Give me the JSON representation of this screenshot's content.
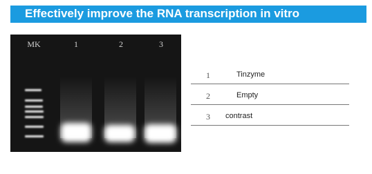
{
  "header": {
    "title": "Effectively improve the RNA transcription in vitro"
  },
  "gel": {
    "lanes": [
      "MK",
      "1",
      "2",
      "3"
    ]
  },
  "table": {
    "rows": [
      [
        "1",
        "Tinzyme"
      ],
      [
        "2",
        "Empty"
      ],
      [
        "3",
        "contrast"
      ]
    ]
  }
}
